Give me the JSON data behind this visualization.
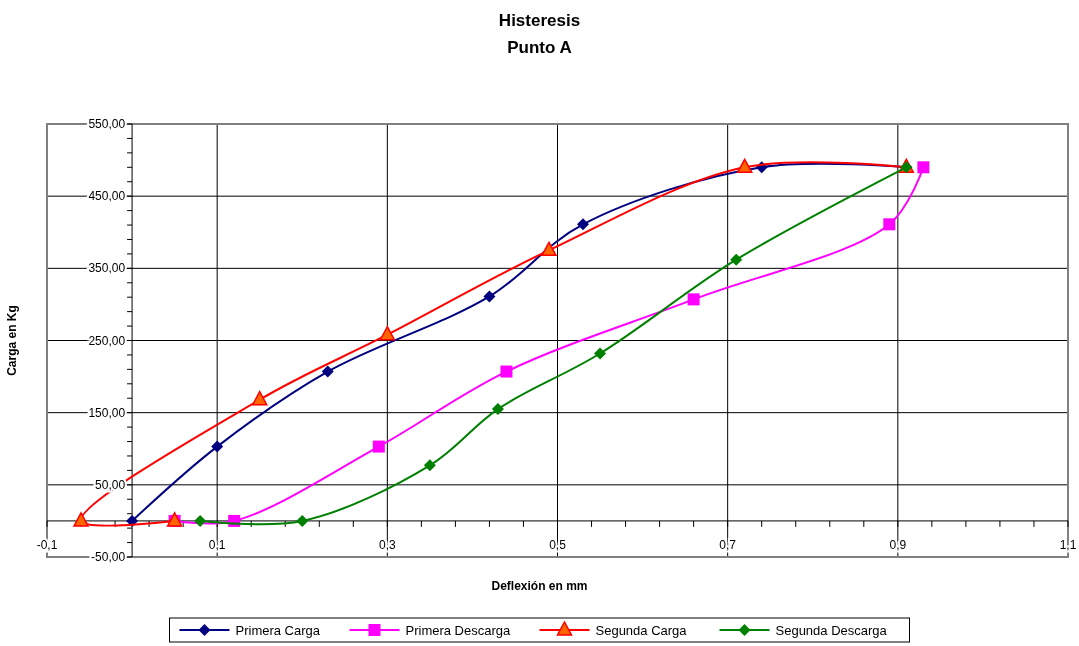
{
  "chart_data": {
    "type": "line",
    "title": "Histeresis",
    "subtitle": "Punto A",
    "xlabel": "Deflexión en mm",
    "ylabel": "Carga en Kg",
    "xlim": [
      -0.1,
      1.1
    ],
    "xticks": [
      {
        "value": -0.1,
        "label": "-0,1"
      },
      {
        "value": -0.06,
        "label": null
      },
      {
        "value": -0.02,
        "label": null
      },
      {
        "value": 0.02,
        "label": null
      },
      {
        "value": 0.06,
        "label": null
      },
      {
        "value": 0.1,
        "label": "0,1"
      },
      {
        "value": 0.14,
        "label": null
      },
      {
        "value": 0.18,
        "label": null
      },
      {
        "value": 0.22,
        "label": null
      },
      {
        "value": 0.26,
        "label": null
      },
      {
        "value": 0.3,
        "label": "0,3"
      },
      {
        "value": 0.34,
        "label": null
      },
      {
        "value": 0.38,
        "label": null
      },
      {
        "value": 0.42,
        "label": null
      },
      {
        "value": 0.46,
        "label": null
      },
      {
        "value": 0.5,
        "label": "0,5"
      },
      {
        "value": 0.54,
        "label": null
      },
      {
        "value": 0.58,
        "label": null
      },
      {
        "value": 0.62,
        "label": null
      },
      {
        "value": 0.66,
        "label": null
      },
      {
        "value": 0.7,
        "label": "0,7"
      },
      {
        "value": 0.74,
        "label": null
      },
      {
        "value": 0.78,
        "label": null
      },
      {
        "value": 0.82,
        "label": null
      },
      {
        "value": 0.86,
        "label": null
      },
      {
        "value": 0.9,
        "label": "0,9"
      },
      {
        "value": 0.94,
        "label": null
      },
      {
        "value": 0.98,
        "label": null
      },
      {
        "value": 1.02,
        "label": null
      },
      {
        "value": 1.06,
        "label": null
      },
      {
        "value": 1.1,
        "label": "1,1"
      }
    ],
    "ylim": [
      -50,
      550
    ],
    "yticks": [
      {
        "value": -50,
        "label": "-50,00"
      },
      {
        "value": -30,
        "label": null
      },
      {
        "value": -10,
        "label": null
      },
      {
        "value": 10,
        "label": null
      },
      {
        "value": 30,
        "label": null
      },
      {
        "value": 50,
        "label": "50,00"
      },
      {
        "value": 70,
        "label": null
      },
      {
        "value": 90,
        "label": null
      },
      {
        "value": 110,
        "label": null
      },
      {
        "value": 130,
        "label": null
      },
      {
        "value": 150,
        "label": "150,00"
      },
      {
        "value": 170,
        "label": null
      },
      {
        "value": 190,
        "label": null
      },
      {
        "value": 210,
        "label": null
      },
      {
        "value": 230,
        "label": null
      },
      {
        "value": 250,
        "label": "250,00"
      },
      {
        "value": 270,
        "label": null
      },
      {
        "value": 290,
        "label": null
      },
      {
        "value": 310,
        "label": null
      },
      {
        "value": 330,
        "label": null
      },
      {
        "value": 350,
        "label": "350,00"
      },
      {
        "value": 370,
        "label": null
      },
      {
        "value": 390,
        "label": null
      },
      {
        "value": 410,
        "label": null
      },
      {
        "value": 430,
        "label": null
      },
      {
        "value": 450,
        "label": "450,00"
      },
      {
        "value": 470,
        "label": null
      },
      {
        "value": 490,
        "label": null
      },
      {
        "value": 510,
        "label": null
      },
      {
        "value": 530,
        "label": null
      },
      {
        "value": 550,
        "label": "550,00"
      }
    ],
    "grid": true,
    "legend": "bottom",
    "series": [
      {
        "name": "Primera Carga",
        "color": "#000080",
        "marker": "diamond",
        "x": [
          0,
          0.1,
          0.23,
          0.42,
          0.53,
          0.74,
          0.91
        ],
        "values": [
          0,
          103,
          207,
          311,
          411,
          490,
          490
        ]
      },
      {
        "name": "Primera Descarga",
        "color": "#ff00ff",
        "marker": "square",
        "x": [
          0.93,
          0.89,
          0.66,
          0.44,
          0.29,
          0.12,
          0.05
        ],
        "values": [
          490,
          411,
          307,
          207,
          103,
          0,
          0
        ]
      },
      {
        "name": "Segunda Carga",
        "color": "#ff0000",
        "marker": "triangle",
        "x": [
          0.05,
          -0.06,
          0.15,
          0.3,
          0.49,
          0.72,
          0.91
        ],
        "values": [
          0,
          0,
          168,
          258,
          375,
          490,
          490
        ]
      },
      {
        "name": "Segunda Descarga",
        "color": "#008000",
        "marker": "diamond",
        "x": [
          0.91,
          0.71,
          0.55,
          0.43,
          0.35,
          0.2,
          0.08
        ],
        "values": [
          490,
          362,
          232,
          155,
          77,
          0,
          0
        ]
      }
    ]
  }
}
